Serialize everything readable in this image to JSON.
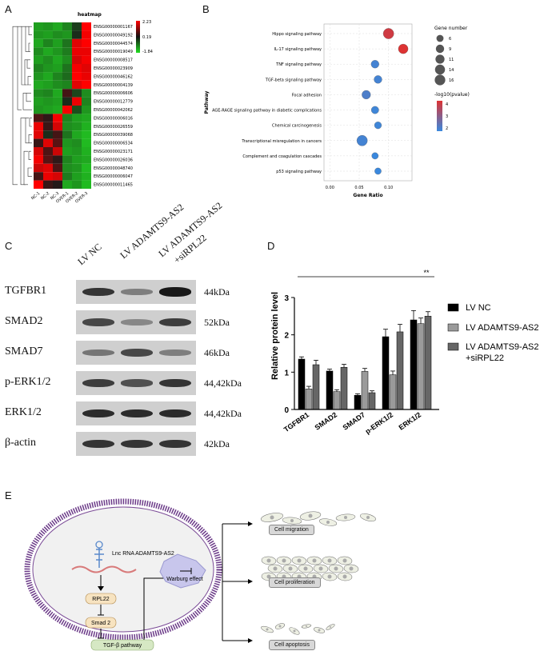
{
  "panels": {
    "a": "A",
    "b": "B",
    "c": "C",
    "d": "D",
    "e": "E"
  },
  "heatmap": {
    "title": "heatmap",
    "genes": [
      "ENSG00000001167",
      "ENSG00000049192",
      "ENSG00000044574",
      "ENSG00000019049",
      "ENSG00000008517",
      "ENSG00000023909",
      "ENSG00000046162",
      "ENSG00000004139",
      "ENSG00000006606",
      "ENSG00000012779",
      "ENSG00000042062",
      "ENSG00000006016",
      "ENSG00000026559",
      "ENSG00000039068",
      "ENSG00000006534",
      "ENSG00000023171",
      "ENSG00000026036",
      "ENSG00000048740",
      "ENSG00000006047",
      "ENSG00000011465"
    ],
    "samples": [
      "NC-1",
      "NC-2",
      "NC-3",
      "OVER-1",
      "OVER-2",
      "OVER-3"
    ],
    "scale_labels": [
      "2.23",
      "0.19",
      "-1.84"
    ],
    "colors": {
      "high": "#ff0000",
      "mid": "#1a1a1a",
      "low": "#22dd22"
    },
    "matrix": [
      [
        -1.5,
        -1.4,
        -1.6,
        -1.2,
        -0.4,
        2.2
      ],
      [
        -1.4,
        -1.5,
        -1.3,
        -1.4,
        -0.2,
        2.1
      ],
      [
        -1.6,
        -1.2,
        -1.5,
        -1.0,
        1.9,
        2.2
      ],
      [
        -1.3,
        -1.6,
        -1.4,
        -1.1,
        2.0,
        2.0
      ],
      [
        -1.5,
        -1.3,
        -1.6,
        -1.3,
        1.8,
        2.1
      ],
      [
        -1.2,
        -1.4,
        -1.5,
        -1.0,
        2.1,
        1.9
      ],
      [
        -1.4,
        -1.6,
        -1.2,
        -0.9,
        2.2,
        2.0
      ],
      [
        -1.6,
        -1.5,
        -1.3,
        -1.2,
        1.9,
        2.2
      ],
      [
        -1.3,
        -1.2,
        -1.6,
        0.4,
        -0.5,
        -1.3
      ],
      [
        -1.5,
        -1.4,
        -1.5,
        -0.2,
        2.0,
        -1.2
      ],
      [
        -1.4,
        -1.5,
        -1.6,
        2.1,
        -0.6,
        -1.4
      ],
      [
        0.5,
        0.2,
        2.1,
        -1.2,
        -1.5,
        -1.6
      ],
      [
        2.0,
        0.3,
        1.8,
        -1.3,
        -1.4,
        -1.7
      ],
      [
        1.9,
        -0.2,
        0.4,
        -1.0,
        -1.6,
        -1.8
      ],
      [
        0.3,
        1.9,
        0.6,
        -1.4,
        -1.3,
        -1.8
      ],
      [
        1.8,
        0.5,
        1.7,
        -1.5,
        -1.4,
        -1.7
      ],
      [
        2.1,
        0.6,
        0.2,
        -1.2,
        -1.5,
        -1.6
      ],
      [
        1.7,
        1.9,
        0.5,
        -1.3,
        -1.4,
        -1.8
      ],
      [
        0.4,
        2.0,
        1.8,
        -1.1,
        -1.5,
        -1.7
      ],
      [
        2.2,
        0.3,
        0.1,
        -1.6,
        -1.4,
        -1.8
      ]
    ]
  },
  "chart_data": [
    {
      "type": "scatter",
      "panel": "B",
      "ylabel": "Pathway",
      "xlabel": "Gene Ratio",
      "xlim": [
        -0.01,
        0.14
      ],
      "xticks": [
        "0.00",
        "0.05",
        "0.10"
      ],
      "xtick_values": [
        0.0,
        0.05,
        0.1
      ],
      "categories": [
        "Hippo signaling pathway",
        "IL-17 signaling pathway",
        "TNF signaling pathway",
        "TGF-beta signaling pathway",
        "Focal adhesion",
        "AGE-RAGE signaling pathway in diabetic complications",
        "Chemical carcinogenesis",
        "Transcriptional misregulation in cancers",
        "Complement and coagulation cascades",
        "p53 signaling pathway"
      ],
      "gene_ratio": [
        0.1,
        0.125,
        0.077,
        0.082,
        0.062,
        0.077,
        0.082,
        0.055,
        0.077,
        0.082
      ],
      "gene_number": [
        16,
        13,
        8,
        8,
        10,
        7,
        6,
        16,
        5,
        5
      ],
      "neglog10p": [
        4.5,
        4.8,
        1.6,
        1.6,
        1.8,
        1.5,
        1.5,
        1.6,
        1.4,
        1.4
      ],
      "size_legend_title": "Gene number",
      "size_legend": [
        "6",
        "9",
        "11",
        "14",
        "16"
      ],
      "color_legend_title": "-log10(pvalue)",
      "color_legend": [
        "4",
        "3",
        "2"
      ],
      "colors": {
        "high": "#dd3333",
        "low": "#3a88dd"
      },
      "grid": true
    },
    {
      "type": "bar",
      "panel": "D",
      "ylabel": "Relative protein level",
      "ylim": [
        0,
        3
      ],
      "yticks": [
        "0",
        "1",
        "2",
        "3"
      ],
      "categories": [
        "TGFBR1",
        "SMAD2",
        "SMAD7",
        "p-ERK1/2",
        "ERK1/2"
      ],
      "series": [
        {
          "name": "LV NC",
          "color": "#000000",
          "values": [
            1.35,
            1.03,
            0.38,
            1.95,
            2.4
          ],
          "err": [
            0.06,
            0.05,
            0.04,
            0.2,
            0.25
          ]
        },
        {
          "name": "LV ADAMTS9-AS2",
          "color": "#9a9a9a",
          "values": [
            0.55,
            0.48,
            1.02,
            0.93,
            2.3
          ],
          "err": [
            0.07,
            0.05,
            0.08,
            0.1,
            0.15
          ]
        },
        {
          "name": "LV ADAMTS9-AS2\n+siRPL22",
          "color": "#666666",
          "values": [
            1.2,
            1.13,
            0.45,
            2.08,
            2.5
          ],
          "err": [
            0.12,
            0.08,
            0.05,
            0.2,
            0.12
          ]
        }
      ],
      "significance": "**",
      "legend": [
        "LV NC",
        "LV ADAMTS9-AS2",
        "LV ADAMTS9-AS2",
        "+siRPL22"
      ]
    }
  ],
  "western": {
    "lanes": [
      "LV NC",
      "LV ADAMTS9-AS2",
      "LV ADAMTS9-AS2",
      "+siRPL22"
    ],
    "proteins": [
      {
        "name": "TGFBR1",
        "kda": "44kDa"
      },
      {
        "name": "SMAD2",
        "kda": "52kDa"
      },
      {
        "name": "SMAD7",
        "kda": "46kDa"
      },
      {
        "name": "p-ERK1/2",
        "kda": "44,42kDa"
      },
      {
        "name": "ERK1/2",
        "kda": "44,42kDa"
      },
      {
        "name": "β-actin",
        "kda": "42kDa"
      }
    ]
  },
  "diagram": {
    "lnc": "Lnc RNA ADAMTS9-AS2",
    "rpl22": "RPL22",
    "smad2": "Smad 2",
    "tgfb": "TGF-β pathway",
    "warburg": "Warburg effect",
    "migration": "Cell migration",
    "proliferation": "Cell proliferation",
    "apoptosis": "Cell apoptosis"
  }
}
